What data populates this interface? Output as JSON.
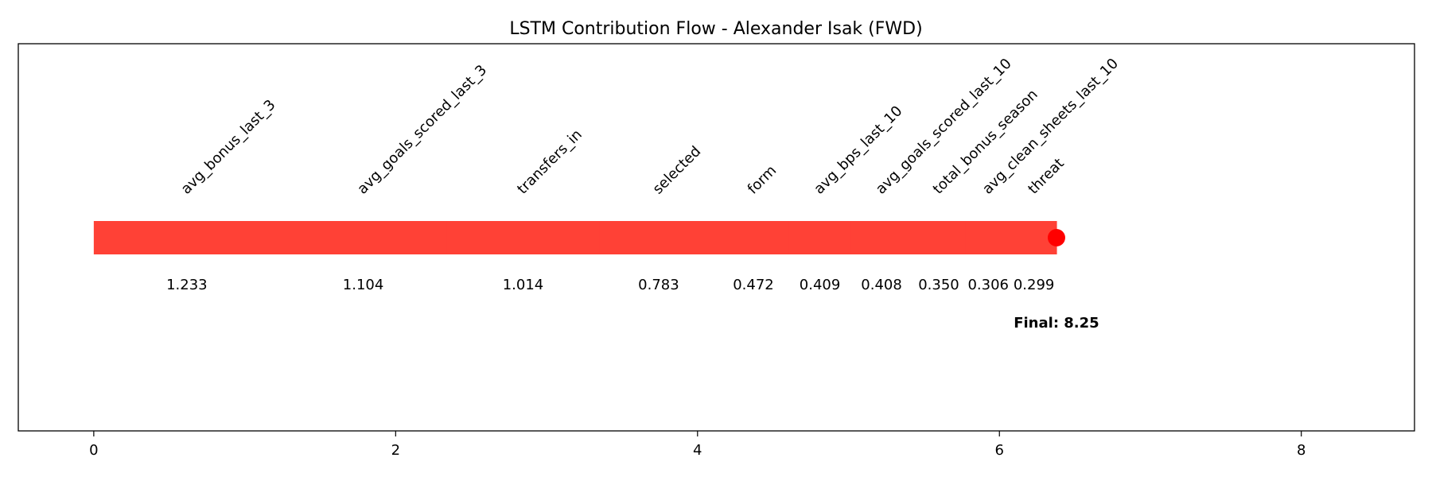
{
  "chart_data": {
    "type": "waterfall",
    "title": "LSTM Contribution Flow - Alexander Isak (FWD)",
    "xlim": [
      -0.5,
      8.75
    ],
    "xticks": [
      0,
      2,
      4,
      6,
      8
    ],
    "xlabel": "",
    "ylabel": "",
    "grid": false,
    "bar_color": "#ff4136",
    "marker_color": "#ff0000",
    "contributions": [
      {
        "feature": "avg_bonus_last_3",
        "value": 1.233,
        "label": "1.233"
      },
      {
        "feature": "avg_goals_scored_last_3",
        "value": 1.104,
        "label": "1.104"
      },
      {
        "feature": "transfers_in",
        "value": 1.014,
        "label": "1.014"
      },
      {
        "feature": "selected",
        "value": 0.783,
        "label": "0.783"
      },
      {
        "feature": "form",
        "value": 0.472,
        "label": "0.472"
      },
      {
        "feature": "avg_bps_last_10",
        "value": 0.409,
        "label": "0.409"
      },
      {
        "feature": "avg_goals_scored_last_10",
        "value": 0.408,
        "label": "0.408"
      },
      {
        "feature": "total_bonus_season",
        "value": 0.35,
        "label": "0.350"
      },
      {
        "feature": "avg_clean_sheets_last_10",
        "value": 0.306,
        "label": "0.306"
      },
      {
        "feature": "threat",
        "value": 0.299,
        "label": "0.299"
      }
    ],
    "final_label": "Final: 8.25"
  }
}
